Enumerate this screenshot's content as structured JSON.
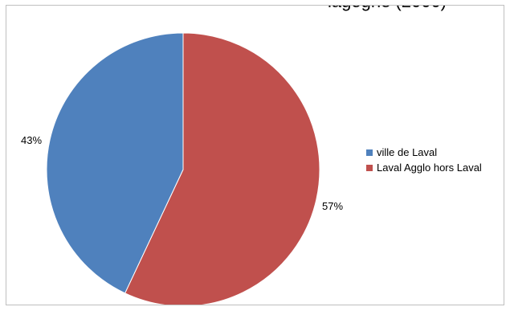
{
  "chart_data": {
    "type": "pie",
    "title": "",
    "title_fragment": "iagogne (2000)",
    "categories": [
      "ville de Laval",
      "Laval Agglo hors Laval"
    ],
    "values": [
      43,
      57
    ],
    "data_labels": [
      "43%",
      "57%"
    ],
    "colors": [
      "#4F81BD",
      "#C0504D"
    ],
    "legend_position": "right"
  }
}
